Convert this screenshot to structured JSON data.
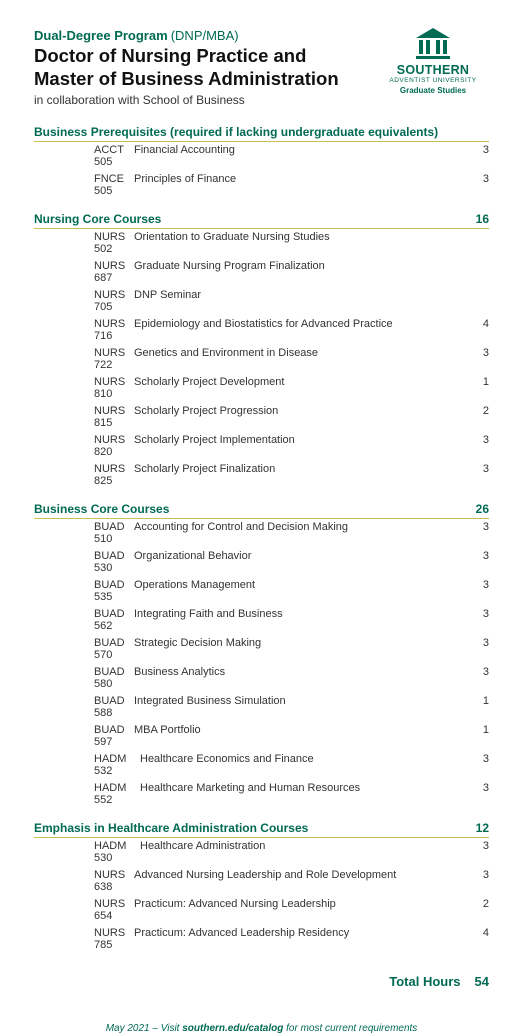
{
  "header": {
    "program_type": "Dual-Degree Program",
    "program_paren": "(DNP/MBA)",
    "title_line1": "Doctor of Nursing Practice and",
    "title_line2": "Master of Business Administration",
    "subtitle": "in collaboration with School of Business",
    "logo_name": "SOUTHERN",
    "logo_sub": "ADVENTIST UNIVERSITY",
    "logo_grad": "Graduate Studies"
  },
  "sections": [
    {
      "title": "Business Prerequisites (required if lacking undergraduate equivalents)",
      "credits": "",
      "rows": [
        {
          "code": "ACCT 505",
          "name": "Financial Accounting",
          "cr": "3"
        },
        {
          "code": "FNCE 505",
          "name": "Principles of Finance",
          "cr": "3"
        }
      ]
    },
    {
      "title": "Nursing Core Courses",
      "credits": "16",
      "rows": [
        {
          "code": "NURS 502",
          "name": "Orientation to Graduate Nursing Studies",
          "cr": ""
        },
        {
          "code": "NURS 687",
          "name": "Graduate Nursing Program Finalization",
          "cr": ""
        },
        {
          "code": "NURS 705",
          "name": "DNP Seminar",
          "cr": ""
        },
        {
          "code": "NURS 716",
          "name": "Epidemiology and Biostatistics for Advanced Practice",
          "cr": "4"
        },
        {
          "code": "NURS 722",
          "name": "Genetics and Environment in Disease",
          "cr": "3"
        },
        {
          "code": "NURS 810",
          "name": "Scholarly Project Development",
          "cr": "1"
        },
        {
          "code": "NURS 815",
          "name": "Scholarly Project Progression",
          "cr": "2"
        },
        {
          "code": "NURS 820",
          "name": "Scholarly Project Implementation",
          "cr": "3"
        },
        {
          "code": "NURS 825",
          "name": "Scholarly Project Finalization",
          "cr": "3"
        }
      ]
    },
    {
      "title": "Business Core Courses",
      "credits": "26",
      "rows": [
        {
          "code": "BUAD 510",
          "name": "Accounting for Control and Decision Making",
          "cr": "3"
        },
        {
          "code": "BUAD 530",
          "name": "Organizational Behavior",
          "cr": "3"
        },
        {
          "code": "BUAD 535",
          "name": "Operations Management",
          "cr": "3"
        },
        {
          "code": "BUAD 562",
          "name": "Integrating Faith and Business",
          "cr": "3"
        },
        {
          "code": "BUAD 570",
          "name": "Strategic Decision Making",
          "cr": "3"
        },
        {
          "code": "BUAD 580",
          "name": "Business Analytics",
          "cr": "3"
        },
        {
          "code": "BUAD 588",
          "name": "Integrated Business Simulation",
          "cr": "1"
        },
        {
          "code": "BUAD 597",
          "name": "MBA Portfolio",
          "cr": "1"
        },
        {
          "code": "HADM 532",
          "name": " Healthcare Economics and Finance",
          "cr": "3"
        },
        {
          "code": "HADM 552",
          "name": " Healthcare Marketing and Human Resources",
          "cr": "3"
        }
      ]
    },
    {
      "title": "Emphasis in Healthcare Administration Courses",
      "credits": "12",
      "rows": [
        {
          "code": "HADM 530",
          "name": " Healthcare Administration",
          "cr": "3"
        },
        {
          "code": "NURS 638",
          "name": "Advanced Nursing Leadership and Role Development",
          "cr": "3"
        },
        {
          "code": "NURS 654",
          "name": "Practicum: Advanced Nursing Leadership",
          "cr": "2"
        },
        {
          "code": "NURS 785",
          "name": "Practicum: Advanced Leadership Residency",
          "cr": "4"
        }
      ]
    }
  ],
  "total": {
    "label": "Total Hours",
    "value": "54"
  },
  "footer": {
    "prefix": "May 2021 – Visit ",
    "link": "southern.edu/catalog",
    "suffix": " for most current requirements"
  }
}
